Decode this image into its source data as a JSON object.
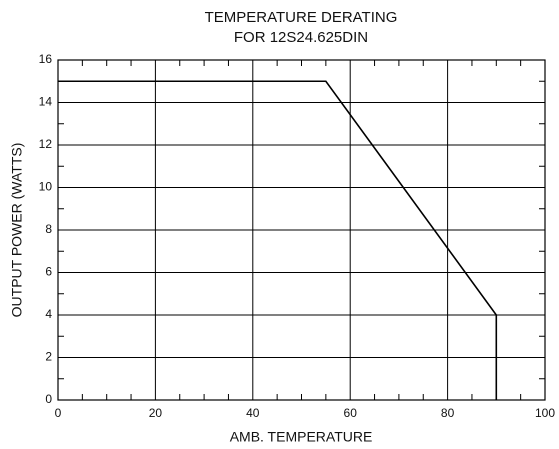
{
  "chart_data": {
    "type": "line",
    "title": "TEMPERATURE DERATING",
    "subtitle": "FOR 12S24.625DIN",
    "x_label": "AMB. TEMPERATURE",
    "y_label": "OUTPUT POWER (WATTS)",
    "x": [
      0,
      55,
      90,
      90
    ],
    "values": [
      15,
      15,
      4,
      0
    ],
    "color": "#000000",
    "xlim": [
      0,
      100
    ],
    "xticks": [
      0,
      20,
      40,
      60,
      80,
      100
    ],
    "xminorticks": [
      5,
      10,
      15,
      25,
      30,
      35,
      45,
      50,
      55,
      65,
      70,
      75,
      85,
      90,
      95
    ],
    "ylim": [
      0,
      16
    ],
    "yticks": [
      0,
      2,
      4,
      6,
      8,
      10,
      12,
      14,
      16
    ],
    "yminorticks": [
      1,
      3,
      5,
      7,
      9,
      11,
      13,
      15
    ],
    "grid": true
  }
}
